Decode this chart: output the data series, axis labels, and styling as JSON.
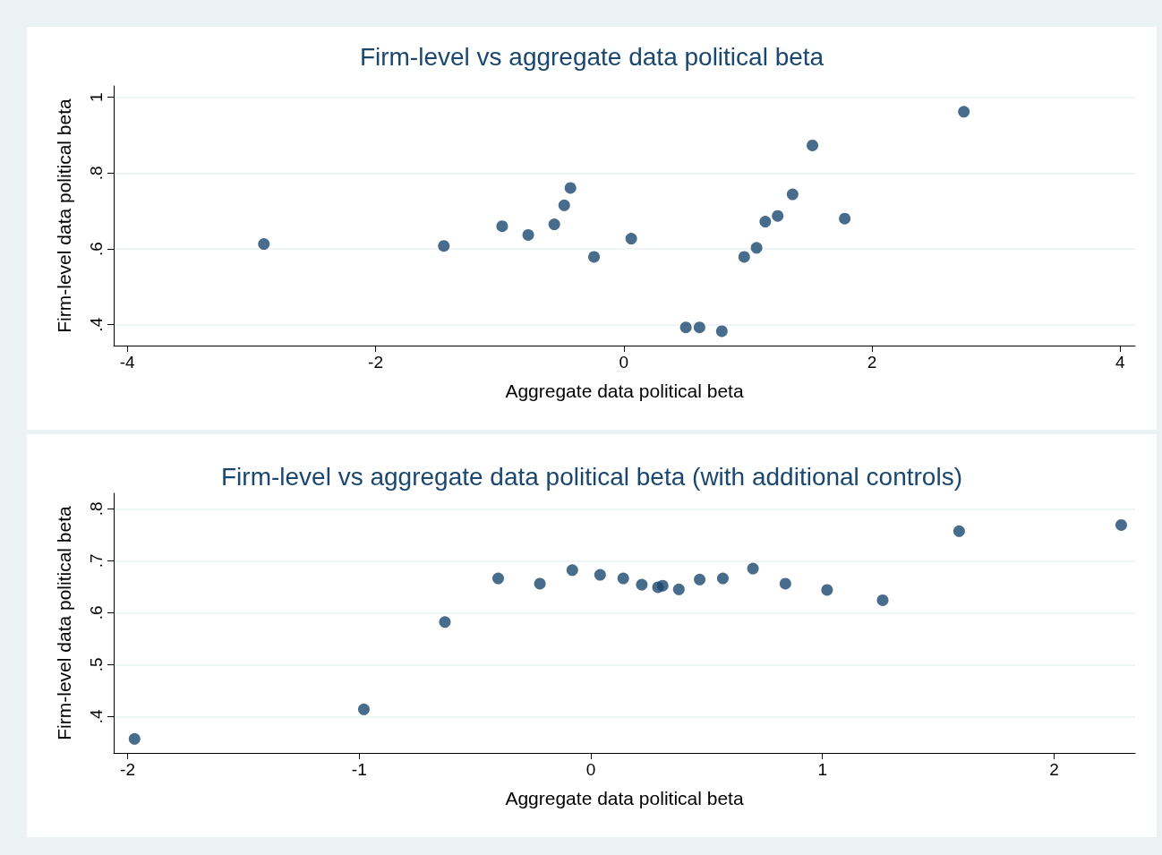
{
  "chart_data": [
    {
      "type": "scatter",
      "title": "Firm-level vs aggregate data political beta",
      "xlabel": "Aggregate data political beta",
      "ylabel": "Firm-level data political beta",
      "x": [
        -2.9,
        -1.45,
        -0.98,
        -0.77,
        -0.56,
        -0.48,
        -0.43,
        -0.24,
        0.06,
        0.5,
        0.61,
        0.79,
        0.97,
        1.07,
        1.14,
        1.24,
        1.36,
        1.52,
        1.78,
        2.74
      ],
      "series": [
        {
          "color": "#1a476f",
          "values": [
            0.613,
            0.608,
            0.66,
            0.637,
            0.665,
            0.715,
            0.761,
            0.579,
            0.627,
            0.393,
            0.393,
            0.383,
            0.579,
            0.603,
            0.672,
            0.687,
            0.744,
            0.873,
            0.68,
            0.962
          ]
        }
      ],
      "xlim": [
        -4.11,
        4.12
      ],
      "xticks": [
        -4,
        -2,
        0,
        2,
        4
      ],
      "ylim": [
        0.345,
        1.03
      ],
      "yticks": [
        {
          "value": 0.4,
          "label": ".4"
        },
        {
          "value": 0.6,
          "label": ".6"
        },
        {
          "value": 0.8,
          "label": ".8"
        },
        1
      ],
      "grid": "y",
      "marker": "circle"
    },
    {
      "type": "scatter",
      "title": "Firm-level vs aggregate data political beta (with additional controls)",
      "xlabel": "Aggregate data political beta",
      "ylabel": "Firm-level data political beta",
      "x": [
        -1.97,
        -0.98,
        -0.63,
        -0.4,
        -0.22,
        -0.08,
        0.04,
        0.14,
        0.22,
        0.29,
        0.31,
        0.38,
        0.47,
        0.57,
        0.7,
        0.84,
        1.02,
        1.26,
        1.59,
        2.29
      ],
      "series": [
        {
          "color": "#1a476f",
          "values": [
            0.357,
            0.414,
            0.582,
            0.666,
            0.656,
            0.682,
            0.673,
            0.666,
            0.654,
            0.649,
            0.652,
            0.645,
            0.664,
            0.666,
            0.685,
            0.656,
            0.644,
            0.624,
            0.757,
            0.769
          ]
        }
      ],
      "xlim": [
        -2.06,
        2.35
      ],
      "xticks": [
        -2,
        -1,
        0,
        1,
        2
      ],
      "ylim": [
        0.33,
        0.83
      ],
      "yticks": [
        {
          "value": 0.4,
          "label": ".4"
        },
        {
          "value": 0.5,
          "label": ".5"
        },
        {
          "value": 0.6,
          "label": ".6"
        },
        {
          "value": 0.7,
          "label": ".7"
        },
        {
          "value": 0.8,
          "label": ".8"
        }
      ],
      "grid": "y",
      "marker": "circle"
    }
  ]
}
